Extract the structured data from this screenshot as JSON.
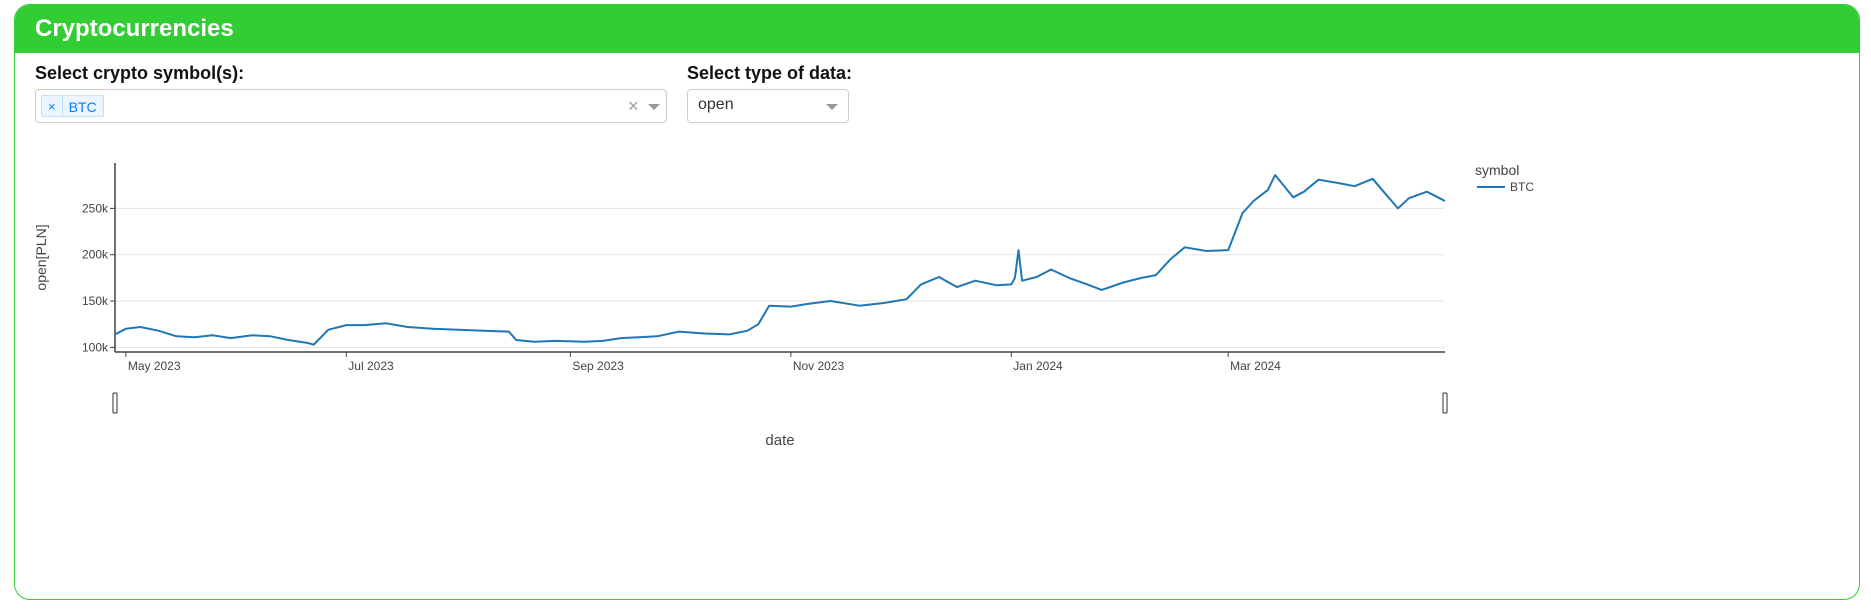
{
  "header": {
    "title": "Cryptocurrencies"
  },
  "controls": {
    "symbol_label": "Select crypto symbol(s):",
    "symbol_selected": [
      "BTC"
    ],
    "data_type_label": "Select type of data:",
    "data_type_value": "open"
  },
  "colors": {
    "accent": "#32cd32",
    "line": "#1f77b4"
  },
  "chart_data": {
    "type": "line",
    "xlabel": "date",
    "ylabel": "open[PLN]",
    "x_ticks": [
      "May 2023",
      "Jul 2023",
      "Sep 2023",
      "Nov 2023",
      "Jan 2024",
      "Mar 2024"
    ],
    "x_tick_dates": [
      "2023-05-01",
      "2023-07-01",
      "2023-09-01",
      "2023-11-01",
      "2024-01-01",
      "2024-03-01"
    ],
    "y_ticks": [
      "100k",
      "150k",
      "200k",
      "250k"
    ],
    "y_tick_values": [
      100000,
      150000,
      200000,
      250000
    ],
    "xlim": [
      "2023-04-28",
      "2024-04-30"
    ],
    "ylim": [
      95000,
      299000
    ],
    "grid": true,
    "legend": {
      "title": "symbol",
      "placement": "top-right"
    },
    "rangeslider": true,
    "series": [
      {
        "name": "BTC",
        "color": "#1f77b4",
        "points": [
          [
            "2023-04-28",
            114000
          ],
          [
            "2023-05-01",
            120000
          ],
          [
            "2023-05-05",
            122000
          ],
          [
            "2023-05-10",
            118000
          ],
          [
            "2023-05-15",
            112000
          ],
          [
            "2023-05-20",
            111000
          ],
          [
            "2023-05-25",
            113000
          ],
          [
            "2023-05-30",
            110000
          ],
          [
            "2023-06-05",
            113000
          ],
          [
            "2023-06-10",
            112000
          ],
          [
            "2023-06-15",
            108000
          ],
          [
            "2023-06-20",
            105000
          ],
          [
            "2023-06-22",
            103000
          ],
          [
            "2023-06-26",
            119000
          ],
          [
            "2023-07-01",
            124000
          ],
          [
            "2023-07-06",
            124000
          ],
          [
            "2023-07-12",
            126000
          ],
          [
            "2023-07-18",
            122000
          ],
          [
            "2023-07-25",
            120000
          ],
          [
            "2023-08-01",
            119000
          ],
          [
            "2023-08-08",
            118000
          ],
          [
            "2023-08-15",
            117000
          ],
          [
            "2023-08-17",
            108000
          ],
          [
            "2023-08-22",
            106000
          ],
          [
            "2023-08-28",
            107000
          ],
          [
            "2023-09-05",
            106000
          ],
          [
            "2023-09-10",
            107000
          ],
          [
            "2023-09-15",
            110000
          ],
          [
            "2023-09-20",
            111000
          ],
          [
            "2023-09-25",
            112000
          ],
          [
            "2023-10-01",
            117000
          ],
          [
            "2023-10-08",
            115000
          ],
          [
            "2023-10-15",
            114000
          ],
          [
            "2023-10-20",
            118000
          ],
          [
            "2023-10-23",
            125000
          ],
          [
            "2023-10-26",
            145000
          ],
          [
            "2023-11-01",
            144000
          ],
          [
            "2023-11-06",
            147000
          ],
          [
            "2023-11-12",
            150000
          ],
          [
            "2023-11-20",
            145000
          ],
          [
            "2023-11-27",
            148000
          ],
          [
            "2023-12-03",
            152000
          ],
          [
            "2023-12-07",
            168000
          ],
          [
            "2023-12-12",
            176000
          ],
          [
            "2023-12-17",
            165000
          ],
          [
            "2023-12-22",
            172000
          ],
          [
            "2023-12-28",
            167000
          ],
          [
            "2024-01-01",
            168000
          ],
          [
            "2024-01-02",
            175000
          ],
          [
            "2024-01-03",
            205000
          ],
          [
            "2024-01-04",
            172000
          ],
          [
            "2024-01-08",
            176000
          ],
          [
            "2024-01-12",
            184000
          ],
          [
            "2024-01-17",
            175000
          ],
          [
            "2024-01-22",
            168000
          ],
          [
            "2024-01-26",
            162000
          ],
          [
            "2024-02-01",
            170000
          ],
          [
            "2024-02-06",
            175000
          ],
          [
            "2024-02-10",
            178000
          ],
          [
            "2024-02-14",
            195000
          ],
          [
            "2024-02-18",
            208000
          ],
          [
            "2024-02-24",
            204000
          ],
          [
            "2024-03-01",
            205000
          ],
          [
            "2024-03-05",
            245000
          ],
          [
            "2024-03-08",
            258000
          ],
          [
            "2024-03-12",
            270000
          ],
          [
            "2024-03-14",
            286000
          ],
          [
            "2024-03-19",
            262000
          ],
          [
            "2024-03-22",
            268000
          ],
          [
            "2024-03-26",
            281000
          ],
          [
            "2024-04-01",
            277000
          ],
          [
            "2024-04-05",
            274000
          ],
          [
            "2024-04-10",
            282000
          ],
          [
            "2024-04-13",
            268000
          ],
          [
            "2024-04-17",
            250000
          ],
          [
            "2024-04-20",
            261000
          ],
          [
            "2024-04-25",
            268000
          ],
          [
            "2024-04-28",
            262000
          ],
          [
            "2024-04-30",
            258000
          ]
        ]
      }
    ]
  }
}
